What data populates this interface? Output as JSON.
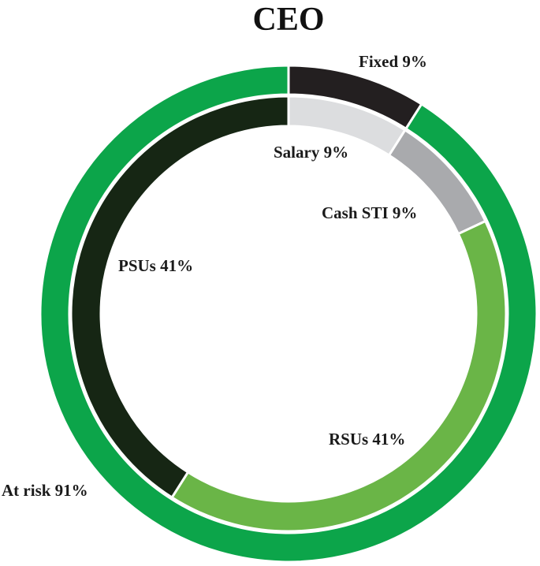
{
  "chart_data": {
    "type": "pie",
    "title": "CEO",
    "rings": [
      {
        "name": "outer",
        "slices": [
          {
            "label": "Fixed 9%",
            "value": 9,
            "color": "#231f20"
          },
          {
            "label": "At risk 91%",
            "value": 91,
            "color": "#0ca54a"
          }
        ]
      },
      {
        "name": "inner",
        "slices": [
          {
            "label": "Salary 9%",
            "value": 9,
            "color": "#dcdddf"
          },
          {
            "label": "Cash STI 9%",
            "value": 9,
            "color": "#a9aaad"
          },
          {
            "label": "RSUs 41%",
            "value": 41,
            "color": "#6ab547"
          },
          {
            "label": "PSUs 41%",
            "value": 41,
            "color": "#162614"
          }
        ]
      }
    ]
  }
}
